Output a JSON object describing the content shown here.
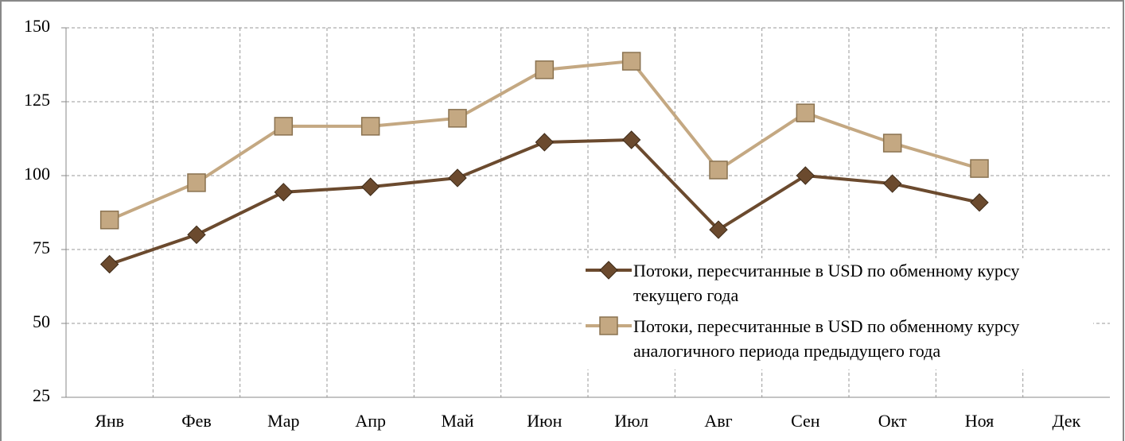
{
  "chart_data": {
    "type": "line",
    "categories": [
      "Янв",
      "Фев",
      "Мар",
      "Апр",
      "Май",
      "Июн",
      "Июл",
      "Авг",
      "Сен",
      "Окт",
      "Ноя",
      "Дек"
    ],
    "series": [
      {
        "name": "Потоки, пересчитанные в USD по обменному курсу  текущего года",
        "color": "#6b4a2e",
        "marker": "diamond",
        "values": [
          70,
          80,
          94.4,
          96.2,
          99.2,
          111.3,
          112.1,
          81.7,
          100,
          97.3,
          90.9,
          null
        ]
      },
      {
        "name": "Потоки, пересчитанные в USD по обменному курсу  аналогичного периода предыдущего года",
        "color": "#c4a882",
        "marker": "square",
        "values": [
          85,
          97.6,
          116.7,
          116.7,
          119.4,
          135.8,
          138.7,
          101.9,
          121.2,
          111,
          102.4,
          null
        ]
      }
    ],
    "ylim": [
      25,
      150
    ],
    "yticks": [
      25,
      50,
      75,
      100,
      125,
      150
    ],
    "grid": true,
    "legend": "lower right"
  }
}
